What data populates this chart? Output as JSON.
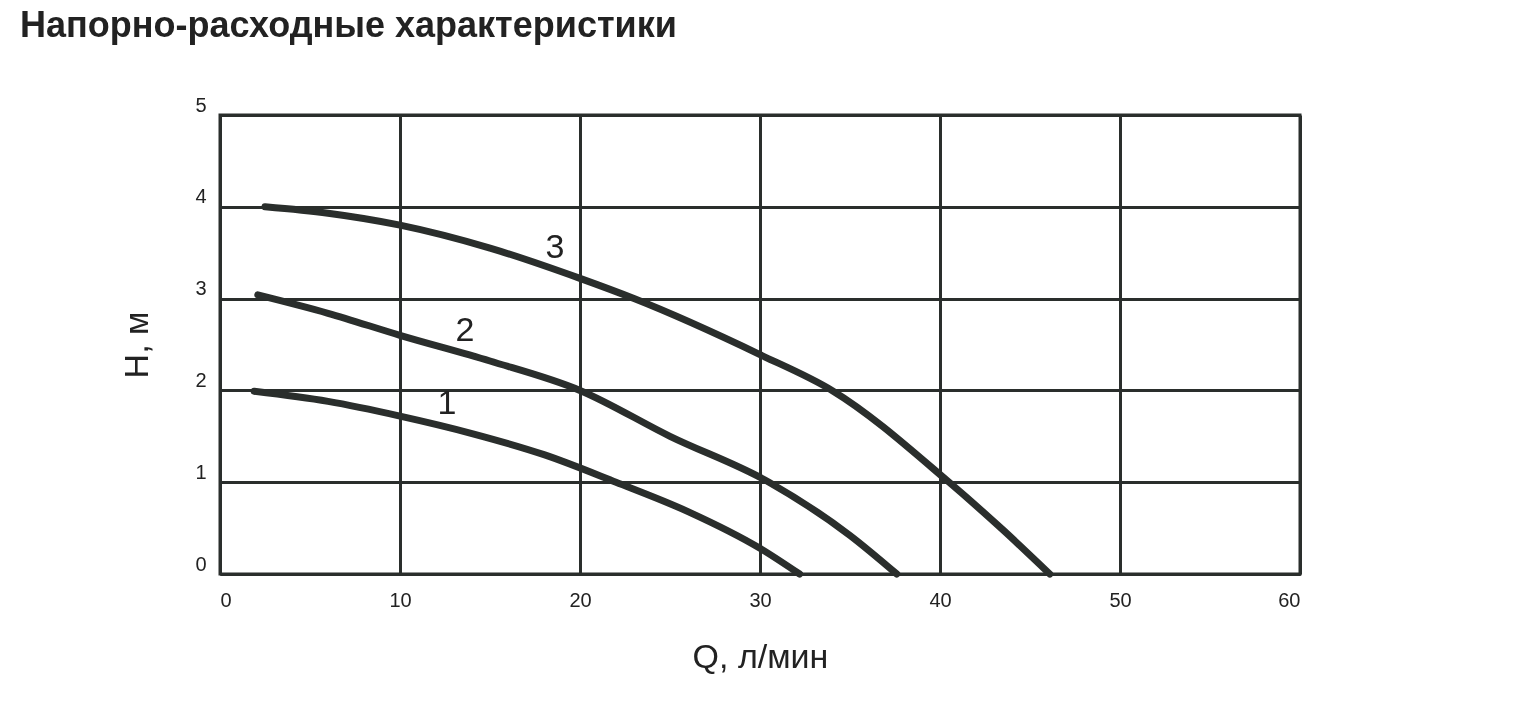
{
  "chart_data": {
    "type": "line",
    "title": "Напорно-расходные характеристики",
    "xlabel": "Q, л/мин",
    "ylabel": "H, м",
    "xlim": [
      0,
      60
    ],
    "xticks": [
      0,
      10,
      20,
      30,
      40,
      50,
      60
    ],
    "ylim": [
      0,
      5
    ],
    "yticks": [
      0,
      1,
      2,
      3,
      4,
      5
    ],
    "grid": true,
    "legend": false,
    "marker": "none",
    "line_style": "solid",
    "series": [
      {
        "name": "1",
        "color": "#2a2e2c",
        "x": [
          1.9,
          6,
          10,
          14,
          18,
          22,
          26,
          30,
          32.2
        ],
        "values": [
          1.99,
          1.88,
          1.72,
          1.53,
          1.3,
          1.0,
          0.68,
          0.28,
          0
        ]
      },
      {
        "name": "2",
        "color": "#2a2e2c",
        "x": [
          2.1,
          6,
          10,
          15,
          20,
          25,
          30.5,
          35,
          37.6
        ],
        "values": [
          3.04,
          2.84,
          2.6,
          2.32,
          2.0,
          1.5,
          1.0,
          0.42,
          0
        ]
      },
      {
        "name": "3",
        "color": "#2a2e2c",
        "x": [
          2.5,
          6,
          10,
          15,
          20,
          23,
          30,
          34,
          40.5,
          43.5,
          46.1
        ],
        "values": [
          4.0,
          3.93,
          3.8,
          3.55,
          3.22,
          3.0,
          2.39,
          2.0,
          1.0,
          0.48,
          0
        ]
      }
    ]
  }
}
